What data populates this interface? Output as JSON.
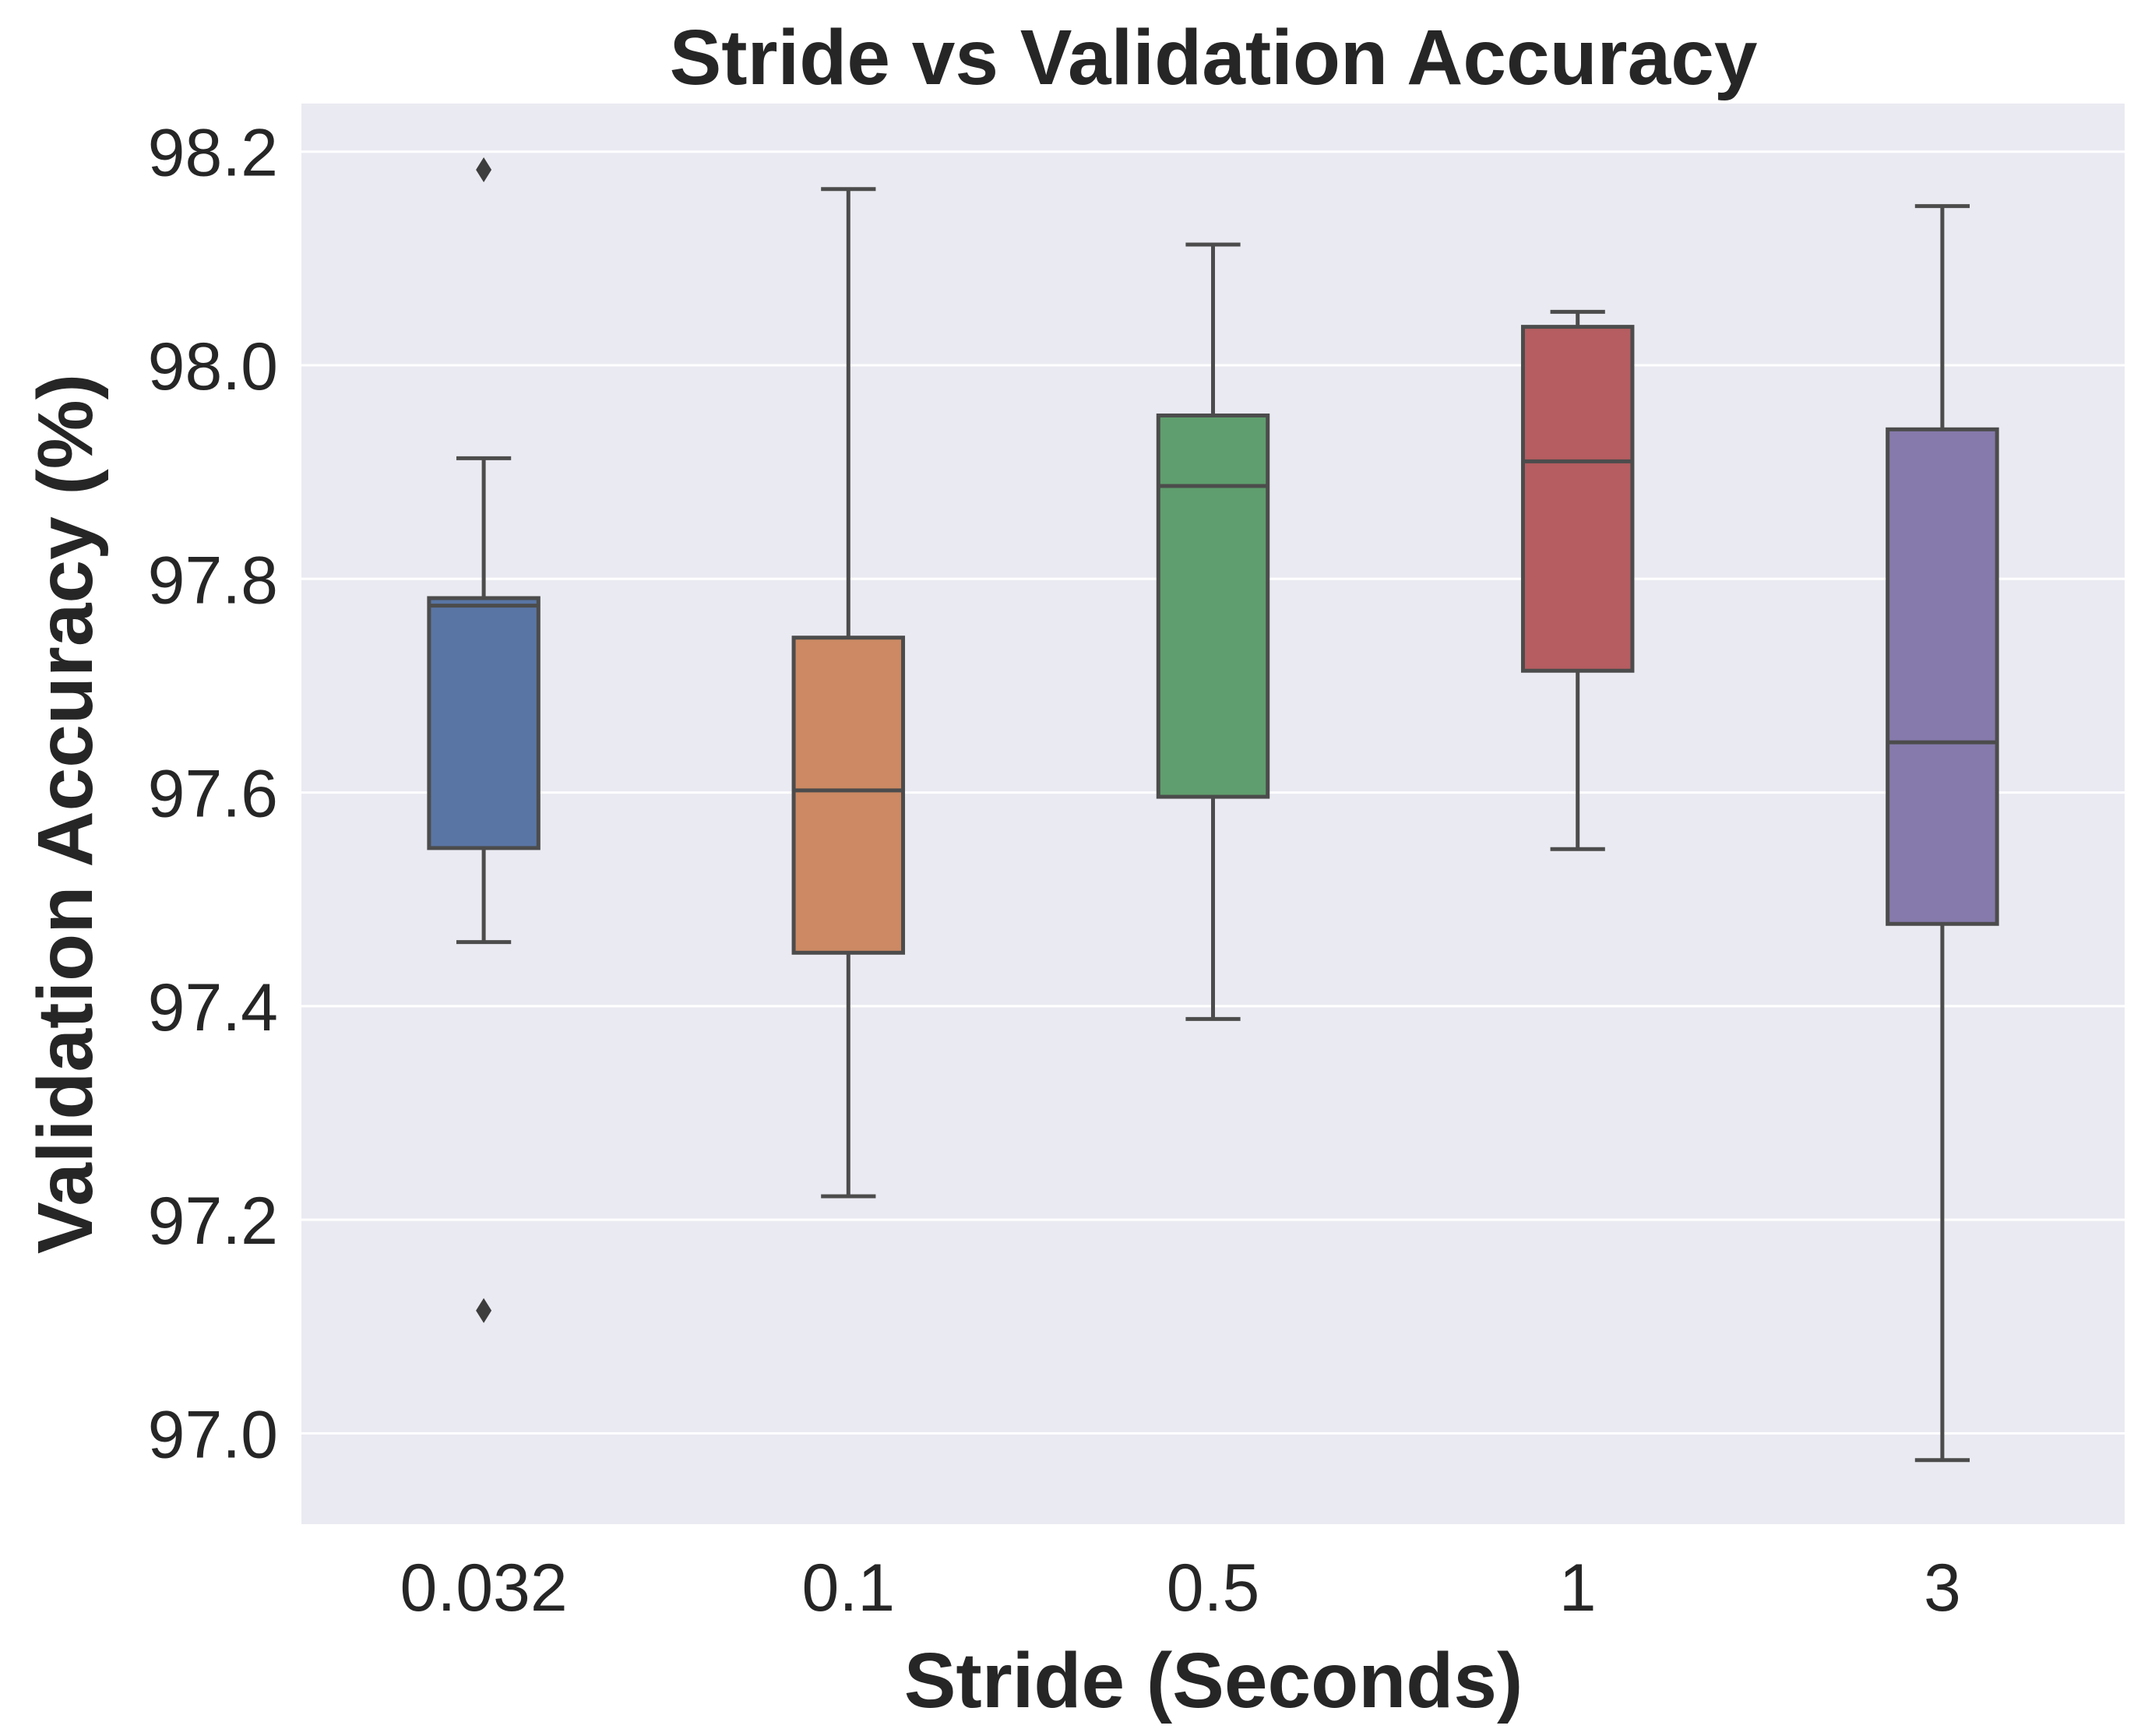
{
  "chart_data": {
    "type": "box",
    "title": "Stride vs Validation Accuracy",
    "xlabel": "Stride (Seconds)",
    "ylabel": "Validation Accuracy (%)",
    "ylim": [
      96.915,
      98.245
    ],
    "yticks": [
      "97.0",
      "97.2",
      "97.4",
      "97.6",
      "97.8",
      "98.0",
      "98.2"
    ],
    "grid": true,
    "categories": [
      "0.032",
      "0.1",
      "0.5",
      "1",
      "3"
    ],
    "boxes": [
      {
        "category": "0.032",
        "color": "#5975a4",
        "whisker_low": 97.46,
        "q1": 97.548,
        "median": 97.775,
        "q3": 97.782,
        "whisker_high": 97.913,
        "outliers": [
          98.183,
          97.115
        ]
      },
      {
        "category": "0.1",
        "color": "#cc8963",
        "whisker_low": 97.222,
        "q1": 97.45,
        "median": 97.602,
        "q3": 97.745,
        "whisker_high": 98.165,
        "outliers": []
      },
      {
        "category": "0.5",
        "color": "#5f9e6e",
        "whisker_low": 97.388,
        "q1": 97.596,
        "median": 97.887,
        "q3": 97.953,
        "whisker_high": 98.113,
        "outliers": []
      },
      {
        "category": "1",
        "color": "#b55d60",
        "whisker_low": 97.547,
        "q1": 97.714,
        "median": 97.91,
        "q3": 98.036,
        "whisker_high": 98.05,
        "outliers": []
      },
      {
        "category": "3",
        "color": "#857aab",
        "whisker_low": 96.975,
        "q1": 97.477,
        "median": 97.647,
        "q3": 97.94,
        "whisker_high": 98.149,
        "outliers": []
      }
    ]
  }
}
